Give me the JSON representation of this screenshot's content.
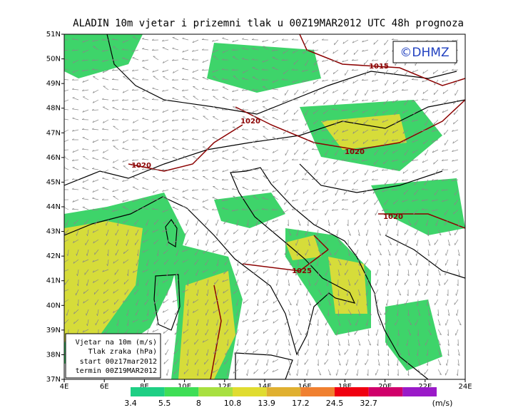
{
  "header": {
    "title": "ALADIN 10m vjetar i prizemni tlak u 00Z19MAR2012 UTC 48h prognoza",
    "copyright": "©DHMZ"
  },
  "latitudes": [
    "51N",
    "50N",
    "49N",
    "48N",
    "47N",
    "46N",
    "45N",
    "44N",
    "43N",
    "42N",
    "41N",
    "40N",
    "39N",
    "38N",
    "37N"
  ],
  "longitudes": [
    "4E",
    "6E",
    "8E",
    "10E",
    "12E",
    "14E",
    "16E",
    "18E",
    "20E",
    "22E",
    "24E"
  ],
  "isobars": [
    {
      "label": "1015"
    },
    {
      "label": "1020"
    },
    {
      "label": "1020"
    },
    {
      "label": "1020"
    },
    {
      "label": "1020"
    },
    {
      "label": "1025"
    }
  ],
  "info": [
    "Vjetar na 10m (m/s)",
    "Tlak zraka (hPa)",
    "start 00z17mar2012",
    "termin 00Z19MAR2012"
  ],
  "colorbar": {
    "labels": [
      "3.4",
      "5.5",
      "8",
      "10.8",
      "13.9",
      "17.2",
      "24.5",
      "32.7"
    ],
    "unit": "(m/s)",
    "colors": [
      "#1ecf84",
      "#3ede56",
      "#a8e040",
      "#e0dc30",
      "#e0b030",
      "#f08030",
      "#f00010",
      "#d0006a",
      "#9a1ac8"
    ]
  }
}
